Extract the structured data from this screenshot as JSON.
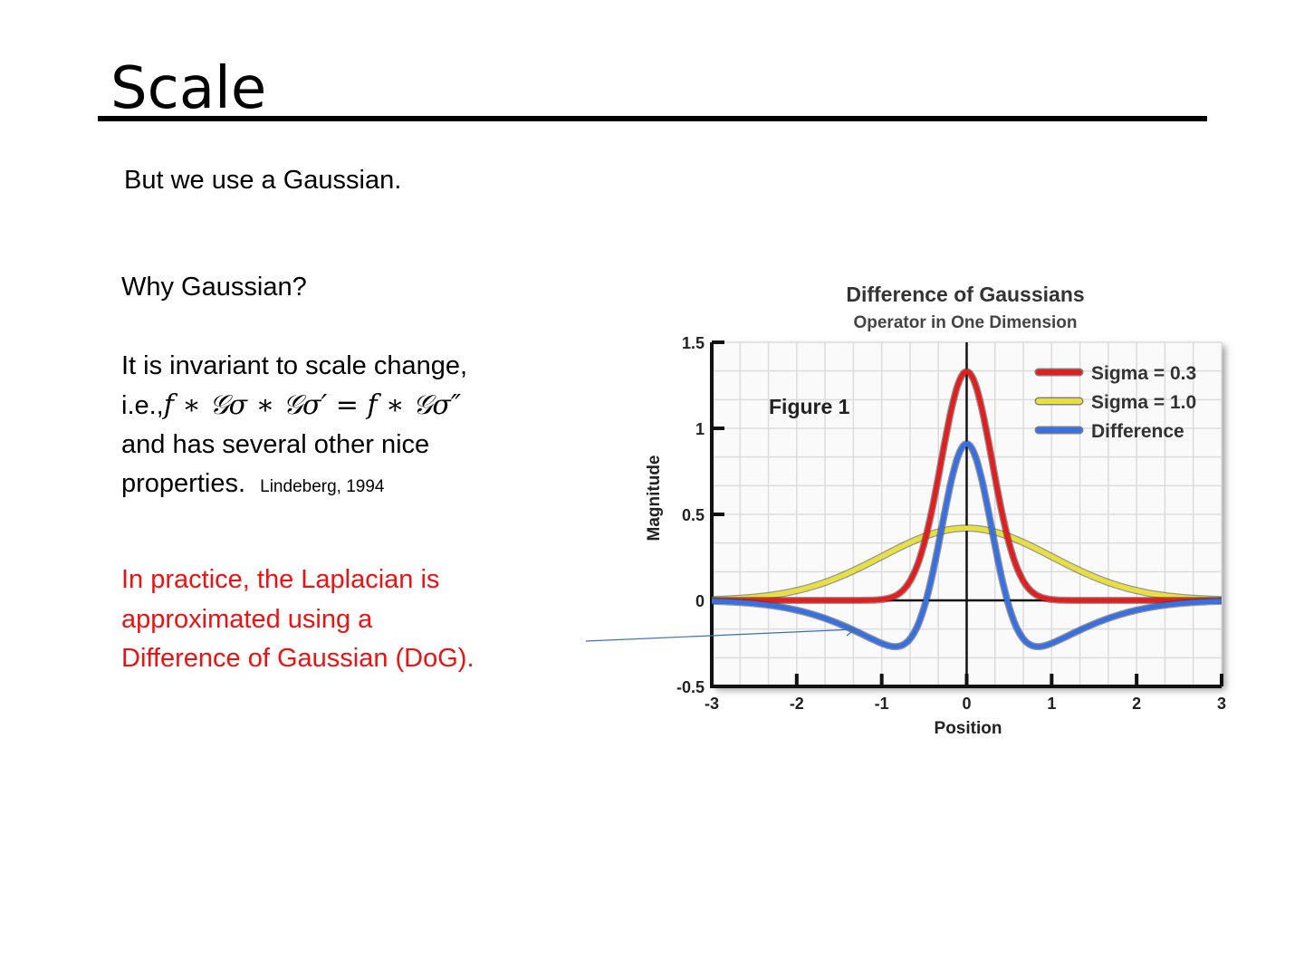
{
  "slide": {
    "title": "Scale",
    "subtitle": "But we use a Gaussian.",
    "question": "Why Gaussian?",
    "body_line1": "It is invariant to scale change,",
    "body_prefix": "i.e.,",
    "formula": "f ∗ 𝒢σ ∗ 𝒢σ′ = f ∗ 𝒢σ″",
    "body_line3": "and has several other nice",
    "body_line4": "properties.",
    "citation": "Lindeberg, 1994",
    "note_lines": [
      "In practice, the Laplacian is",
      "approximated using a",
      "Difference of Gaussian (DoG)."
    ],
    "note_color": "#ee1111"
  },
  "chart_data": {
    "type": "line",
    "title": "Difference of Gaussians",
    "subtitle": "Operator in One Dimension",
    "annotation": "Figure 1",
    "xlabel": "Position",
    "ylabel": "Magnitude",
    "xlim": [
      -3,
      3
    ],
    "ylim": [
      -0.5,
      1.5
    ],
    "xticks": [
      "-3",
      "-2",
      "-1",
      "0",
      "1",
      "2",
      "3"
    ],
    "yticks": [
      "1.5",
      "1",
      "0.5",
      "0",
      "-0.5"
    ],
    "grid": true,
    "legend_position": "top-right",
    "series": [
      {
        "name": "Sigma = 0.3",
        "kind": "gaussian",
        "sigma": 0.3,
        "peak": 1.33,
        "color": "#e02020"
      },
      {
        "name": "Sigma = 1.0",
        "kind": "gaussian",
        "sigma": 1.0,
        "peak": 0.42,
        "color": "#e8e040"
      },
      {
        "name": "Difference",
        "kind": "difference",
        "peak": 0.92,
        "min": -0.24,
        "color": "#3a6fe0"
      }
    ]
  }
}
